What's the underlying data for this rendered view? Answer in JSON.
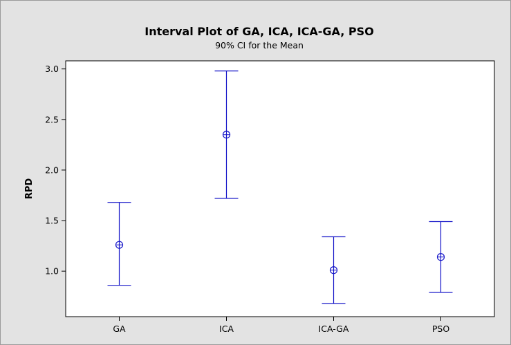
{
  "chart_data": {
    "type": "interval",
    "title": "Interval Plot of GA, ICA, ICA-GA, PSO",
    "subtitle": "90% CI for the Mean",
    "xlabel": "",
    "ylabel": "RPD",
    "categories": [
      "GA",
      "ICA",
      "ICA-GA",
      "PSO"
    ],
    "means": [
      1.26,
      2.35,
      1.01,
      1.14
    ],
    "lower": [
      0.86,
      1.72,
      0.68,
      0.79
    ],
    "upper": [
      1.68,
      2.98,
      1.34,
      1.49
    ],
    "yticks": [
      1.0,
      1.5,
      2.0,
      2.5,
      3.0
    ],
    "ytick_labels": [
      "1.0",
      "1.5",
      "2.0",
      "2.5",
      "3.0"
    ],
    "ylim": [
      0.55,
      3.08
    ],
    "grid": false,
    "legend": "none",
    "colors": {
      "series": "#1414c8",
      "plot_background": "#ffffff",
      "frame_background": "#e3e3e3"
    }
  }
}
